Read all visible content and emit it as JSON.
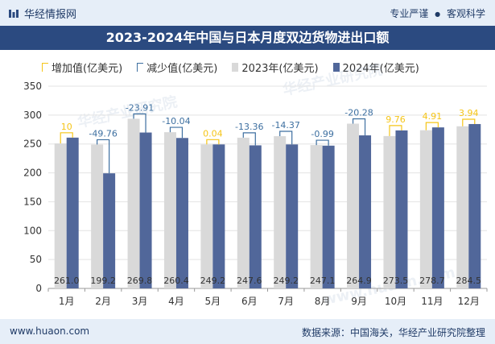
{
  "header": {
    "brand": "华经情报网",
    "tag1": "专业严谨",
    "separator": "●",
    "tag2": "客观科学"
  },
  "chart_data": {
    "type": "bar",
    "title": "2023-2024年中国与日本月度双边货物进出口额",
    "categories": [
      "1月",
      "2月",
      "3月",
      "4月",
      "5月",
      "6月",
      "7月",
      "8月",
      "9月",
      "10月",
      "11月",
      "12月"
    ],
    "series": [
      {
        "name": "2023年(亿美元)",
        "color": "#d9d9d9",
        "values": [
          251.0,
          249.0,
          293.7,
          270.4,
          249.2,
          260.9,
          263.5,
          248.1,
          285.2,
          263.7,
          273.8,
          280.6
        ]
      },
      {
        "name": "2024年(亿美元)",
        "color": "#51679a",
        "values": [
          261.0,
          199.2,
          269.8,
          260.4,
          249.2,
          247.6,
          249.2,
          247.1,
          264.9,
          273.5,
          278.7,
          284.5
        ]
      }
    ],
    "change": {
      "increase_label": "增加值(亿美元)",
      "decrease_label": "减少值(亿美元)",
      "increase_color": "#f5c518",
      "decrease_color": "#3d6fa0",
      "values": [
        10,
        -49.76,
        -23.91,
        -10.04,
        0.04,
        -13.36,
        -14.37,
        -0.99,
        -20.28,
        9.76,
        4.91,
        3.94
      ],
      "labels": [
        "10",
        "-49.76",
        "-23.91",
        "-10.04",
        "0.04",
        "-13.36",
        "-14.37",
        "-0.99",
        "-20.28",
        "9.76",
        "4.91",
        "3.94"
      ]
    },
    "value_labels_2024": [
      "261.0",
      "199.2",
      "269.8",
      "260.4",
      "249.2",
      "247.6",
      "249.2",
      "247.1",
      "264.9",
      "273.5",
      "278.7",
      "284.5"
    ],
    "ylim": [
      0,
      350
    ],
    "yticks": [
      0,
      50,
      100,
      150,
      200,
      250,
      300,
      350
    ],
    "xlabel": "",
    "ylabel": ""
  },
  "footer": {
    "website": "www.huaon.com",
    "source": "数据来源：中国海关，华经产业研究院整理"
  },
  "watermarks": [
    "华经产业研究院",
    "www.huaon.com"
  ]
}
